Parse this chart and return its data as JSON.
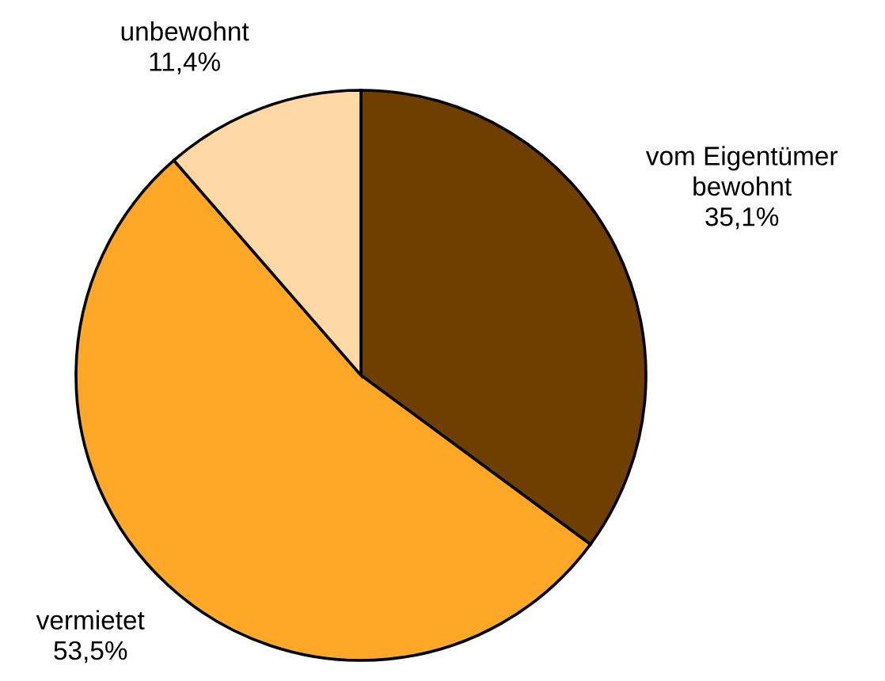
{
  "chart_data": {
    "type": "pie",
    "categories": [
      "vom Eigentümer\nbewohnt",
      "vermietet",
      "unbewohnt"
    ],
    "values": [
      35.1,
      53.5,
      11.4
    ],
    "value_labels": [
      "35,1%",
      "53,5%",
      "11,4%"
    ],
    "colors": [
      "#6f3f00",
      "#ffa726",
      "#fed9a6"
    ]
  }
}
